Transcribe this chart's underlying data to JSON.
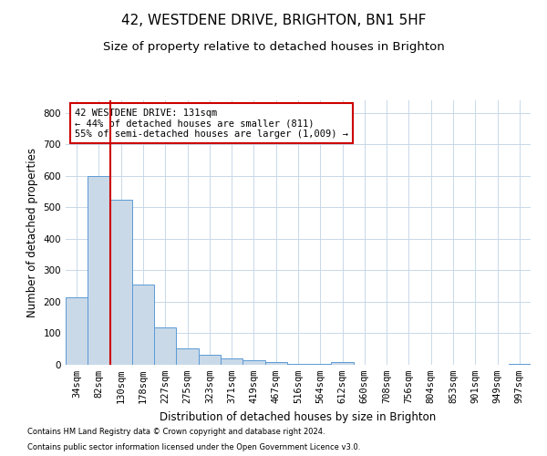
{
  "title": "42, WESTDENE DRIVE, BRIGHTON, BN1 5HF",
  "subtitle": "Size of property relative to detached houses in Brighton",
  "xlabel": "Distribution of detached houses by size in Brighton",
  "ylabel": "Number of detached properties",
  "footnote1": "Contains HM Land Registry data © Crown copyright and database right 2024.",
  "footnote2": "Contains public sector information licensed under the Open Government Licence v3.0.",
  "categories": [
    "34sqm",
    "82sqm",
    "130sqm",
    "178sqm",
    "227sqm",
    "275sqm",
    "323sqm",
    "371sqm",
    "419sqm",
    "467sqm",
    "516sqm",
    "564sqm",
    "612sqm",
    "660sqm",
    "708sqm",
    "756sqm",
    "804sqm",
    "853sqm",
    "901sqm",
    "949sqm",
    "997sqm"
  ],
  "values": [
    215,
    600,
    525,
    255,
    118,
    52,
    32,
    20,
    15,
    8,
    4,
    2,
    10,
    1,
    1,
    1,
    1,
    1,
    1,
    1,
    4
  ],
  "bar_color": "#c9d9e8",
  "bar_edge_color": "#5b9bd5",
  "highlight_line_color": "#cc0000",
  "annotation_text": "42 WESTDENE DRIVE: 131sqm\n← 44% of detached houses are smaller (811)\n55% of semi-detached houses are larger (1,009) →",
  "annotation_box_color": "#cc0000",
  "ylim": [
    0,
    840
  ],
  "yticks": [
    0,
    100,
    200,
    300,
    400,
    500,
    600,
    700,
    800
  ],
  "bg_color": "#ffffff",
  "grid_color": "#c8d8e8",
  "title_fontsize": 11,
  "subtitle_fontsize": 9.5,
  "axis_label_fontsize": 8.5,
  "tick_fontsize": 7.5,
  "annotation_fontsize": 7.5,
  "footnote_fontsize": 6.0
}
